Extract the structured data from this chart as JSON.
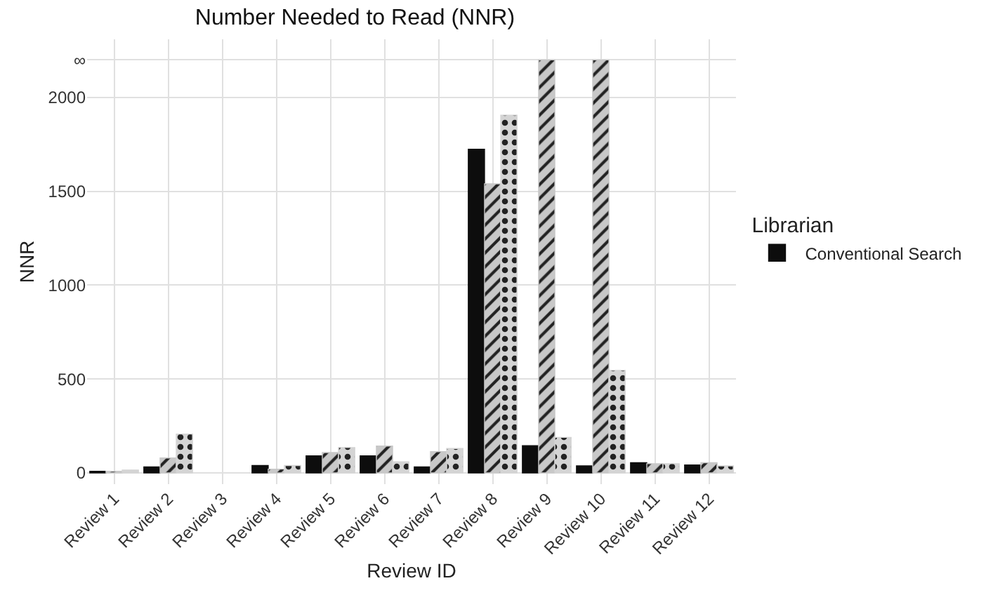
{
  "chart_data": {
    "type": "bar",
    "title": "Number Needed to Read (NNR)",
    "xlabel": "Review ID",
    "ylabel": "NNR",
    "legend_title": "Librarian",
    "categories": [
      "Review 1",
      "Review 2",
      "Review 3",
      "Review 4",
      "Review 5",
      "Review 6",
      "Review 7",
      "Review 8",
      "Review 9",
      "Review 10",
      "Review 11",
      "Review 12"
    ],
    "series": [
      {
        "name": "Conventional Search",
        "color": "#0d0d0d",
        "values": [
          8,
          32,
          null,
          39,
          91,
          91,
          32,
          1724,
          145,
          37,
          54,
          42
        ]
      },
      {
        "color": "#c8c8c8",
        "values": [
          8,
          79,
          null,
          20,
          108,
          143,
          113,
          1540,
          2200,
          2200,
          49,
          54
        ]
      },
      {
        "color": "#d4d4d4",
        "values": [
          15,
          207,
          null,
          39,
          135,
          59,
          130,
          1906,
          189,
          546,
          49,
          37
        ]
      }
    ],
    "ylim": [
      -60,
      2310
    ],
    "yticks": [
      0,
      500,
      1000,
      1500,
      2000,
      {
        "value": 2200,
        "label": "∞"
      }
    ],
    "grid": true,
    "legend": "right"
  }
}
